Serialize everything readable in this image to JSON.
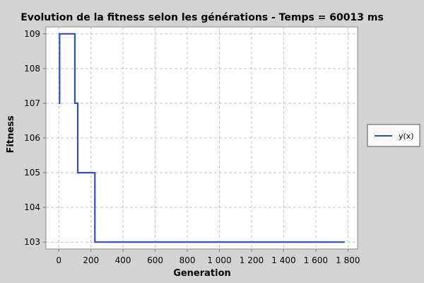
{
  "chart_data": {
    "type": "line",
    "title": "Evolution de la fitness selon les générations - Temps = 60013 ms",
    "xlabel": "Generation",
    "ylabel": "Fitness",
    "xlim": [
      -80,
      1860
    ],
    "ylim": [
      102.8,
      109.2
    ],
    "xticks": [
      0,
      200,
      400,
      600,
      800,
      1000,
      1200,
      1400,
      1600,
      1800
    ],
    "xtick_labels": [
      "0",
      "200",
      "400",
      "600",
      "800",
      "1 000",
      "1 200",
      "1 400",
      "1 600",
      "1 800"
    ],
    "yticks": [
      103,
      104,
      105,
      106,
      107,
      108,
      109
    ],
    "ytick_labels": [
      "103",
      "104",
      "105",
      "106",
      "107",
      "108",
      "109"
    ],
    "grid": true,
    "legend_position": "right",
    "series": [
      {
        "name": "y(x)",
        "color": "#2f4fd0",
        "x": [
          0,
          5,
          5,
          100,
          100,
          118,
          118,
          225,
          225,
          1780
        ],
        "y": [
          107,
          107,
          109,
          109,
          107,
          107,
          105,
          105,
          103,
          103
        ]
      }
    ]
  }
}
